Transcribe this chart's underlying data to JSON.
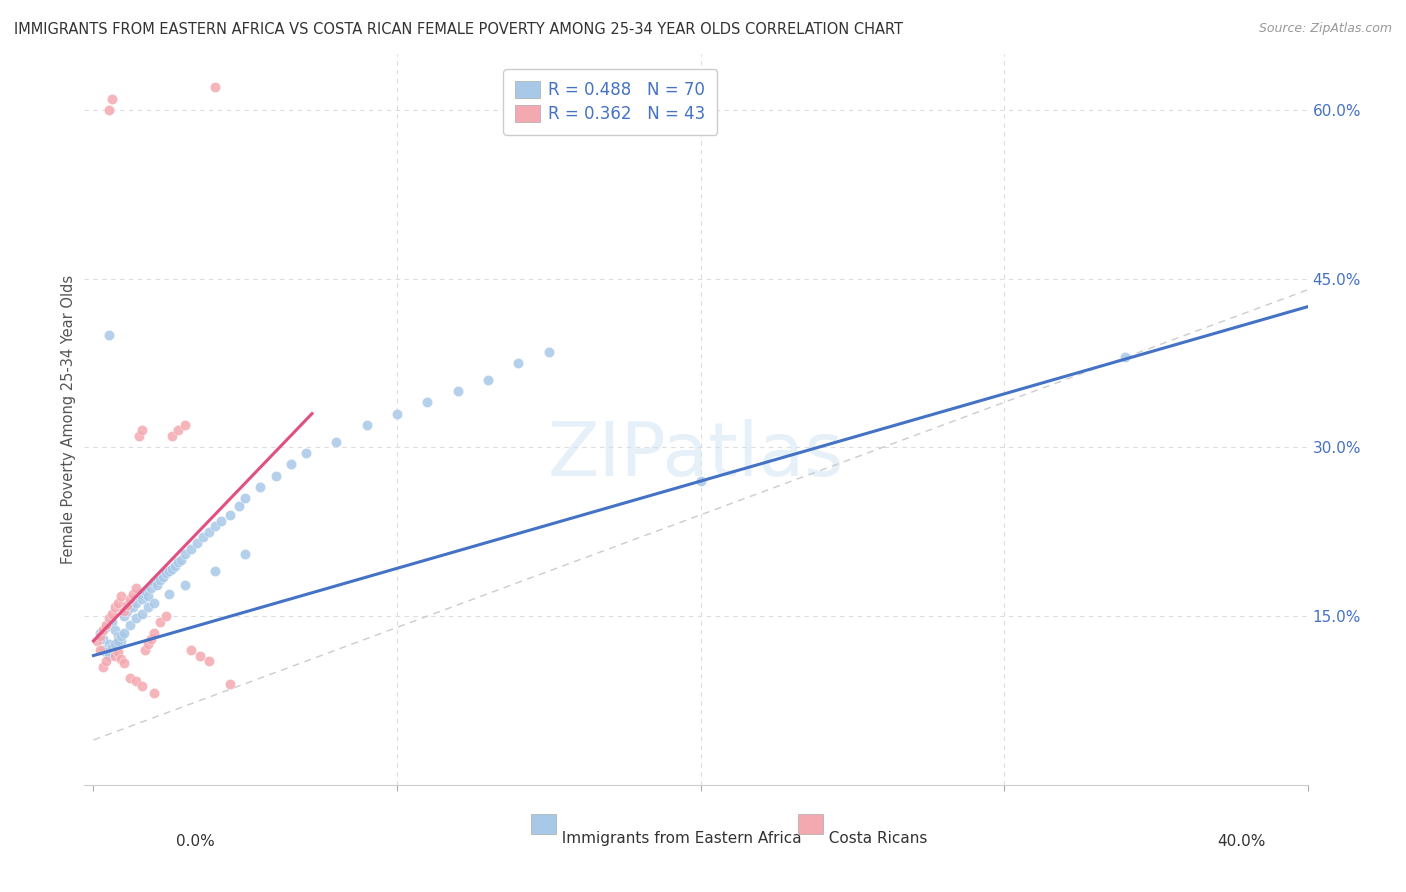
{
  "title": "IMMIGRANTS FROM EASTERN AFRICA VS COSTA RICAN FEMALE POVERTY AMONG 25-34 YEAR OLDS CORRELATION CHART",
  "source": "Source: ZipAtlas.com",
  "ylabel": "Female Poverty Among 25-34 Year Olds",
  "xlim": [
    0.0,
    0.4
  ],
  "ylim": [
    0.0,
    0.65
  ],
  "blue_R": 0.488,
  "blue_N": 70,
  "pink_R": 0.362,
  "pink_N": 43,
  "blue_color": "#a8c8e8",
  "pink_color": "#f4a8b0",
  "blue_line_color": "#4472c4",
  "pink_line_color": "#e05080",
  "diagonal_color": "#cccccc",
  "legend_label_blue": "Immigrants from Eastern Africa",
  "legend_label_pink": "Costa Ricans",
  "blue_scatter_x": [
    0.002,
    0.003,
    0.004,
    0.005,
    0.006,
    0.007,
    0.008,
    0.009,
    0.01,
    0.011,
    0.012,
    0.013,
    0.014,
    0.015,
    0.016,
    0.017,
    0.018,
    0.019,
    0.02,
    0.021,
    0.022,
    0.023,
    0.024,
    0.025,
    0.026,
    0.027,
    0.028,
    0.029,
    0.03,
    0.032,
    0.034,
    0.036,
    0.038,
    0.04,
    0.042,
    0.045,
    0.048,
    0.05,
    0.055,
    0.06,
    0.065,
    0.07,
    0.08,
    0.09,
    0.1,
    0.11,
    0.12,
    0.13,
    0.14,
    0.15,
    0.003,
    0.004,
    0.005,
    0.006,
    0.007,
    0.008,
    0.009,
    0.01,
    0.012,
    0.014,
    0.016,
    0.018,
    0.02,
    0.025,
    0.03,
    0.04,
    0.05,
    0.2,
    0.34,
    0.005
  ],
  "blue_scatter_y": [
    0.135,
    0.13,
    0.14,
    0.125,
    0.145,
    0.138,
    0.132,
    0.128,
    0.15,
    0.155,
    0.16,
    0.158,
    0.162,
    0.17,
    0.165,
    0.172,
    0.168,
    0.175,
    0.18,
    0.178,
    0.182,
    0.185,
    0.188,
    0.19,
    0.192,
    0.195,
    0.198,
    0.2,
    0.205,
    0.21,
    0.215,
    0.22,
    0.225,
    0.23,
    0.235,
    0.24,
    0.248,
    0.255,
    0.265,
    0.275,
    0.285,
    0.295,
    0.305,
    0.32,
    0.33,
    0.34,
    0.35,
    0.36,
    0.375,
    0.385,
    0.12,
    0.118,
    0.115,
    0.122,
    0.125,
    0.128,
    0.132,
    0.135,
    0.142,
    0.148,
    0.152,
    0.158,
    0.162,
    0.17,
    0.178,
    0.19,
    0.205,
    0.27,
    0.38,
    0.4
  ],
  "pink_scatter_x": [
    0.001,
    0.002,
    0.003,
    0.004,
    0.005,
    0.006,
    0.007,
    0.008,
    0.009,
    0.01,
    0.011,
    0.012,
    0.013,
    0.014,
    0.015,
    0.016,
    0.017,
    0.018,
    0.019,
    0.02,
    0.022,
    0.024,
    0.026,
    0.028,
    0.03,
    0.032,
    0.035,
    0.038,
    0.04,
    0.045,
    0.002,
    0.003,
    0.004,
    0.005,
    0.006,
    0.007,
    0.008,
    0.009,
    0.01,
    0.012,
    0.014,
    0.016,
    0.02
  ],
  "pink_scatter_y": [
    0.128,
    0.132,
    0.138,
    0.142,
    0.148,
    0.152,
    0.158,
    0.162,
    0.168,
    0.155,
    0.16,
    0.165,
    0.17,
    0.175,
    0.31,
    0.315,
    0.12,
    0.125,
    0.13,
    0.135,
    0.145,
    0.15,
    0.31,
    0.315,
    0.32,
    0.12,
    0.115,
    0.11,
    0.62,
    0.09,
    0.12,
    0.105,
    0.11,
    0.6,
    0.61,
    0.115,
    0.118,
    0.112,
    0.108,
    0.095,
    0.092,
    0.088,
    0.082
  ]
}
